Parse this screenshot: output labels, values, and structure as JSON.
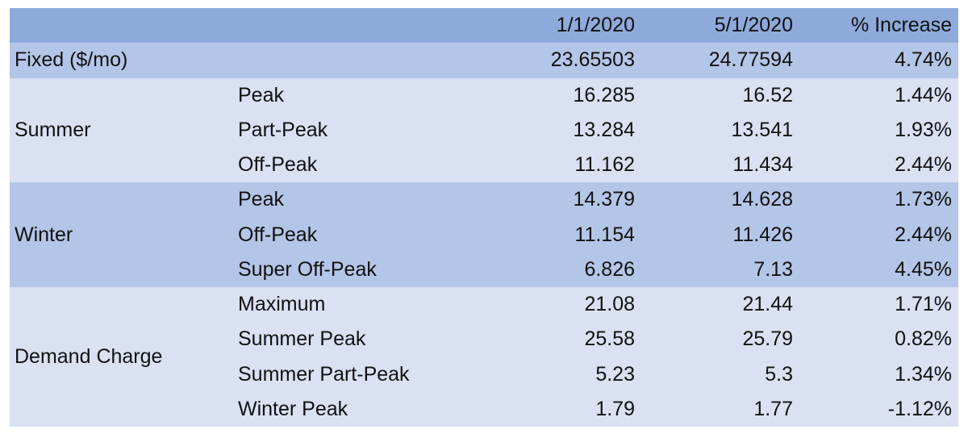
{
  "table": {
    "header": [
      "1/1/2020",
      "5/1/2020",
      "% Increase"
    ],
    "fixed": {
      "label": "Fixed ($/mo)",
      "values": [
        "23.65503",
        "24.77594",
        "4.74%"
      ]
    },
    "groups": [
      {
        "label": "Summer",
        "rows": [
          {
            "name": "Peak",
            "values": [
              "16.285",
              "16.52",
              "1.44%"
            ]
          },
          {
            "name": "Part-Peak",
            "values": [
              "13.284",
              "13.541",
              "1.93%"
            ]
          },
          {
            "name": "Off-Peak",
            "values": [
              "11.162",
              "11.434",
              "2.44%"
            ]
          }
        ]
      },
      {
        "label": "Winter",
        "rows": [
          {
            "name": "Peak",
            "values": [
              "14.379",
              "14.628",
              "1.73%"
            ]
          },
          {
            "name": "Off-Peak",
            "values": [
              "11.154",
              "11.426",
              "2.44%"
            ]
          },
          {
            "name": "Super Off-Peak",
            "values": [
              "6.826",
              "7.13",
              "4.45%"
            ]
          }
        ]
      },
      {
        "label": "Demand Charge",
        "rows": [
          {
            "name": "Maximum",
            "values": [
              "21.08",
              "21.44",
              "1.71%"
            ]
          },
          {
            "name": "Summer Peak",
            "values": [
              "25.58",
              "25.79",
              "0.82%"
            ]
          },
          {
            "name": "Summer Part-Peak",
            "values": [
              "5.23",
              "5.3",
              "1.34%"
            ]
          },
          {
            "name": "Winter Peak",
            "values": [
              "1.79",
              "1.77",
              "-1.12%"
            ]
          }
        ]
      }
    ]
  }
}
